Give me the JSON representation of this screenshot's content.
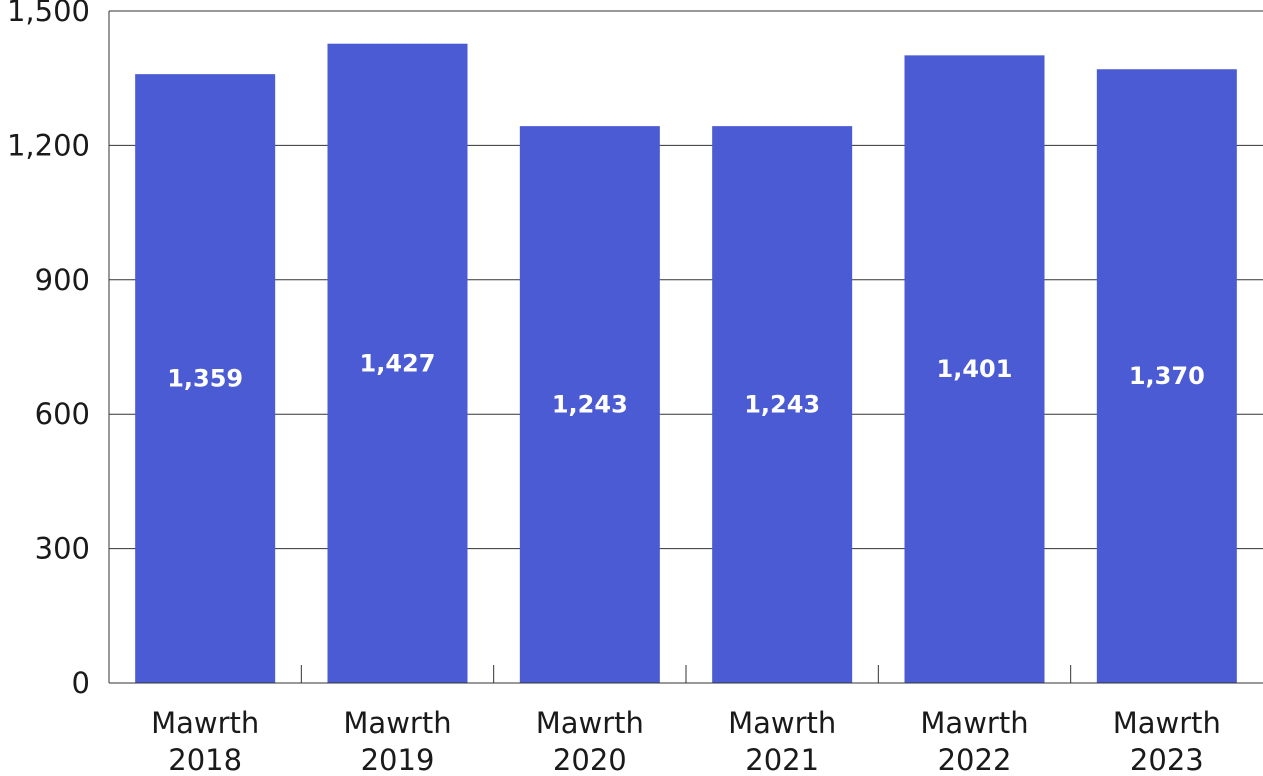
{
  "chart_data": {
    "type": "bar",
    "categories": [
      [
        "Mawrth",
        "2018"
      ],
      [
        "Mawrth",
        "2019"
      ],
      [
        "Mawrth",
        "2020"
      ],
      [
        "Mawrth",
        "2021"
      ],
      [
        "Mawrth",
        "2022"
      ],
      [
        "Mawrth",
        "2023"
      ]
    ],
    "values": [
      1359,
      1427,
      1243,
      1243,
      1401,
      1370
    ],
    "value_labels": [
      "1,359",
      "1,427",
      "1,243",
      "1,243",
      "1,401",
      "1,370"
    ],
    "title": "",
    "xlabel": "",
    "ylabel": "",
    "ylim": [
      0,
      1500
    ],
    "yticks": [
      0,
      300,
      600,
      900,
      1200,
      1500
    ],
    "ytick_labels": [
      "0",
      "300",
      "600",
      "900",
      "1,200",
      "1,500"
    ],
    "grid": "horizontal",
    "legend": "none",
    "bar_color": "#4a5bd4",
    "grid_color": "#333333",
    "text_color": "#1a1a1a",
    "label_color": "#ffffff"
  }
}
